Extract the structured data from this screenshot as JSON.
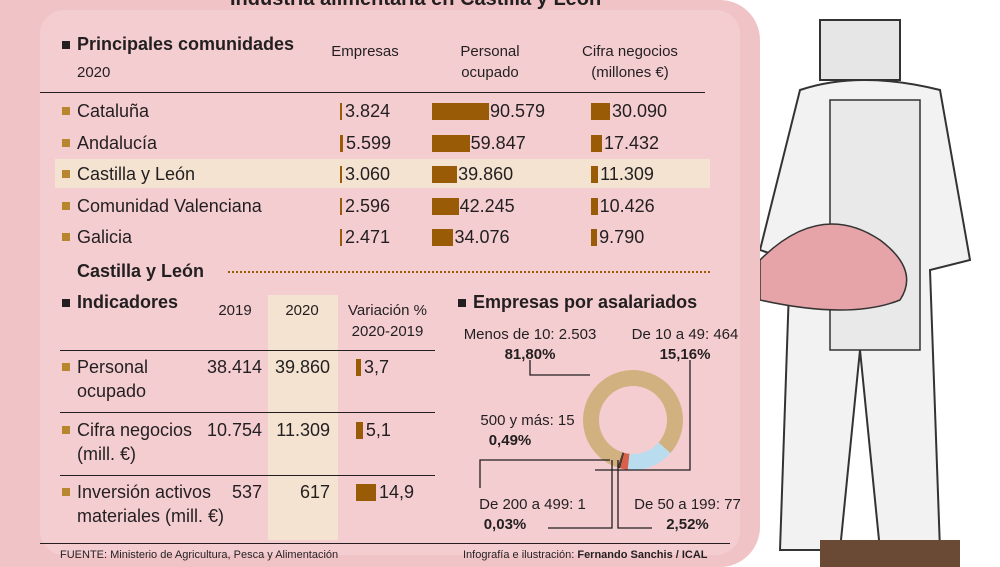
{
  "title": "Industria alimentaria en Castilla y León",
  "top": {
    "heading": "Principales comunidades",
    "year": "2020",
    "col_empresas": "Empresas",
    "col_personal": [
      "Personal",
      "ocupado"
    ],
    "col_cifra": [
      "Cifra negocios",
      "(millones €)"
    ],
    "rows": [
      {
        "name": "Cataluña",
        "empresas": "3.824",
        "personal": "90.579",
        "cifra": "30.090",
        "e": 3824,
        "p": 90579,
        "c": 30090
      },
      {
        "name": "Andalucía",
        "empresas": "5.599",
        "personal": "59.847",
        "cifra": "17.432",
        "e": 5599,
        "p": 59847,
        "c": 17432
      },
      {
        "name": "Castilla y León",
        "empresas": "3.060",
        "personal": "39.860",
        "cifra": "11.309",
        "e": 3060,
        "p": 39860,
        "c": 11309,
        "highlight": true
      },
      {
        "name": "Comunidad Valenciana",
        "empresas": "2.596",
        "personal": "42.245",
        "cifra": "10.426",
        "e": 2596,
        "p": 42245,
        "c": 10426
      },
      {
        "name": "Galicia",
        "empresas": "2.471",
        "personal": "34.076",
        "cifra": "9.790",
        "e": 2471,
        "p": 34076,
        "c": 9790
      }
    ]
  },
  "cyl": {
    "heading": "Castilla y León",
    "ind_heading": "Indicadores",
    "col_2019": "2019",
    "col_2020": "2020",
    "col_var": [
      "Variación %",
      "2020-2019"
    ],
    "rows": [
      {
        "label": [
          "Personal",
          "ocupado"
        ],
        "v2019": "38.414",
        "v2020": "39.860",
        "var": "3,7",
        "varnum": 3.7
      },
      {
        "label": [
          "Cifra negocios",
          "(mill. €)"
        ],
        "v2019": "10.754",
        "v2020": "11.309",
        "var": "5,1",
        "varnum": 5.1
      },
      {
        "label": [
          "Inversión activos",
          "materiales (mill. €)"
        ],
        "v2019": "537",
        "v2020": "617",
        "var": "14,9",
        "varnum": 14.9
      }
    ]
  },
  "chart_data": {
    "type": "pie",
    "title": "Empresas por asalariados",
    "donut": true,
    "slices": [
      {
        "label": "Menos de 10: 2.503",
        "value": 2503,
        "pct": "81,80%",
        "color": "#d2b180"
      },
      {
        "label": "De 10 a 49: 464",
        "value": 464,
        "pct": "15,16%",
        "color": "#b9dcef"
      },
      {
        "label": "De 50 a 199: 77",
        "value": 77,
        "pct": "2,52%",
        "color": "#d9604a"
      },
      {
        "label": "De 200 a 499: 1",
        "value": 1,
        "pct": "0,03%",
        "color": "#231f20"
      },
      {
        "label": "500 y más: 15",
        "value": 15,
        "pct": "0,49%",
        "color": "#5a3a2a"
      }
    ]
  },
  "footer": {
    "source": "FUENTE: Ministerio de Agricultura, Pesca y Alimentación",
    "credit_prefix": "Infografía e ilustración: ",
    "credit_name": "Fernando Sanchis / ICAL"
  },
  "colors": {
    "bar": "#9a5b07",
    "highlight": "#f3e3d0",
    "background": "#f0c3c7"
  }
}
